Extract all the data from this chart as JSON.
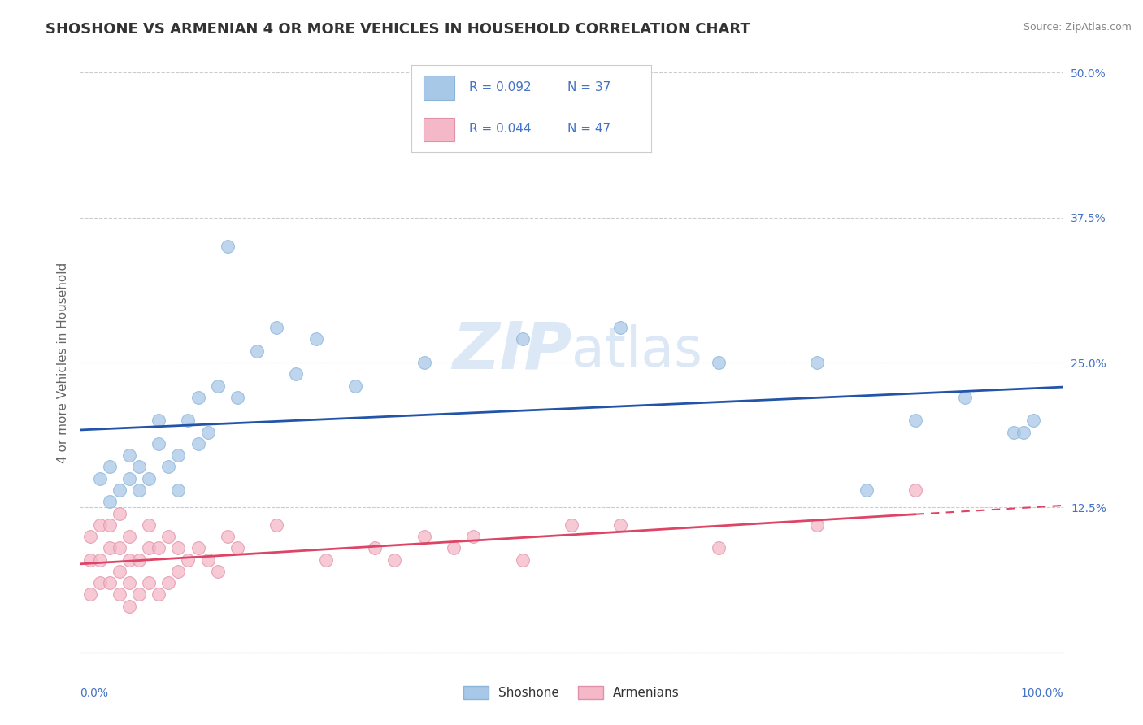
{
  "title": "SHOSHONE VS ARMENIAN 4 OR MORE VEHICLES IN HOUSEHOLD CORRELATION CHART",
  "source": "Source: ZipAtlas.com",
  "ylabel": "4 or more Vehicles in Household",
  "shoshone_color": "#a8c8e8",
  "armenian_color": "#f4b8c8",
  "shoshone_line_color": "#2255aa",
  "armenian_line_color": "#dd4466",
  "background_color": "#ffffff",
  "grid_color": "#cccccc",
  "tick_color": "#4472c4",
  "watermark_color": "#dce8f5",
  "legend_text_color": "#4472c4",
  "title_color": "#333333",
  "source_color": "#888888",
  "shoshone_x": [
    2,
    3,
    3,
    4,
    5,
    5,
    6,
    6,
    7,
    8,
    8,
    9,
    10,
    10,
    11,
    12,
    12,
    13,
    14,
    15,
    16,
    18,
    20,
    22,
    24,
    28,
    35,
    45,
    55,
    65,
    75,
    80,
    85,
    90,
    95,
    96,
    97
  ],
  "shoshone_y": [
    15,
    13,
    16,
    14,
    15,
    17,
    14,
    16,
    15,
    18,
    20,
    16,
    17,
    14,
    20,
    22,
    18,
    19,
    23,
    35,
    22,
    26,
    28,
    24,
    27,
    23,
    25,
    27,
    28,
    25,
    25,
    14,
    20,
    22,
    19,
    19,
    20
  ],
  "armenian_x": [
    1,
    1,
    1,
    2,
    2,
    2,
    3,
    3,
    3,
    4,
    4,
    4,
    4,
    5,
    5,
    5,
    5,
    6,
    6,
    7,
    7,
    7,
    8,
    8,
    9,
    9,
    10,
    10,
    11,
    12,
    13,
    14,
    15,
    16,
    20,
    25,
    30,
    32,
    35,
    38,
    40,
    45,
    50,
    55,
    65,
    75,
    85
  ],
  "armenian_y": [
    5,
    8,
    10,
    6,
    8,
    11,
    6,
    9,
    11,
    5,
    7,
    9,
    12,
    4,
    6,
    8,
    10,
    5,
    8,
    6,
    9,
    11,
    5,
    9,
    6,
    10,
    7,
    9,
    8,
    9,
    8,
    7,
    10,
    9,
    11,
    8,
    9,
    8,
    10,
    9,
    10,
    8,
    11,
    11,
    9,
    11,
    14
  ],
  "xlim": [
    0,
    100
  ],
  "ylim": [
    0,
    50
  ],
  "yticks": [
    0,
    12.5,
    25,
    37.5,
    50
  ],
  "ytick_labels": [
    "",
    "12.5%",
    "25.0%",
    "37.5%",
    "50.0%"
  ],
  "title_fontsize": 13,
  "axis_fontsize": 11,
  "tick_fontsize": 10,
  "legend_r1": "R = 0.092",
  "legend_n1": "N = 37",
  "legend_r2": "R = 0.044",
  "legend_n2": "N = 47"
}
